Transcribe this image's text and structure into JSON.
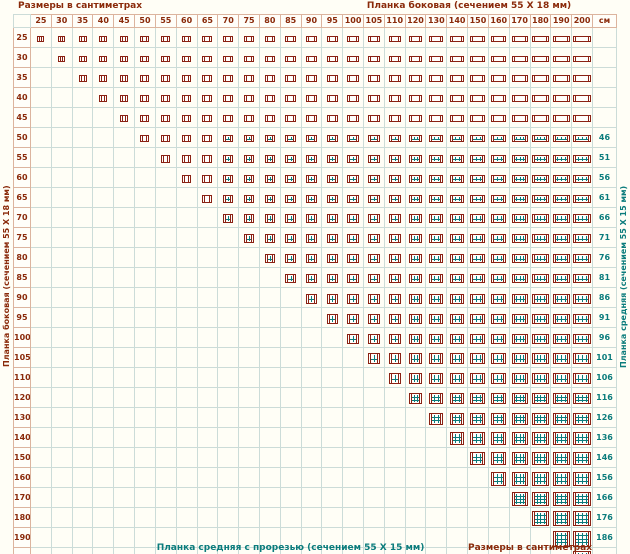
{
  "titles": {
    "top_left": "Размеры в сантиметрах",
    "top_right": "Планка боковая (сечением 55 Х 18 мм)",
    "left_vertical": "Планка боковая (сечением 55 Х 18 мм)",
    "right_vertical": "Планка средняя (сечением 55 Х 15 мм)",
    "bottom": "Планка средняя с прорезью (сечением 55 Х 15 мм)",
    "bottom_right": "Размеры в сантиметрах",
    "unit_header": "см"
  },
  "colors": {
    "side_plank_text": "#8a2a0a",
    "middle_plank_text": "#0b7c7c",
    "grid_line": "#ccdcd8",
    "header_line": "#dcb49e",
    "background": "#fffef6",
    "icon_frame": "#8a2113",
    "icon_brace": "#0e8080"
  },
  "chart_data": {
    "type": "table",
    "title": "Таблица размеров подрамников",
    "description": "Треугольная матрица размеров рам: ячейка показана, если размер столбца (ширина) не меньше размера строки (высота). Пиктограмма в ячейке изображает раму из боковых планок с поперечными средними планками; число средних планок растёт с размером.",
    "sizes_cm": [
      25,
      30,
      35,
      40,
      45,
      50,
      55,
      60,
      65,
      70,
      75,
      80,
      85,
      90,
      95,
      100,
      105,
      110,
      120,
      130,
      140,
      150,
      160,
      170,
      180,
      190,
      200
    ],
    "column_headers": [
      25,
      30,
      35,
      40,
      45,
      50,
      55,
      60,
      65,
      70,
      75,
      80,
      85,
      90,
      95,
      100,
      105,
      110,
      120,
      130,
      140,
      150,
      160,
      170,
      180,
      190,
      200
    ],
    "row_headers": [
      25,
      30,
      35,
      40,
      45,
      50,
      55,
      60,
      65,
      70,
      75,
      80,
      85,
      90,
      95,
      100,
      105,
      110,
      120,
      130,
      140,
      150,
      160,
      170,
      180,
      190,
      200
    ],
    "bottom_plank_lengths": [
      null,
      null,
      null,
      null,
      null,
      null,
      null,
      null,
      null,
      66,
      71,
      76,
      81,
      86,
      91,
      96,
      101,
      106,
      116,
      126,
      136,
      146,
      156,
      166,
      176,
      186,
      196
    ],
    "right_plank_lengths": [
      null,
      null,
      null,
      null,
      null,
      46,
      51,
      56,
      61,
      66,
      71,
      76,
      81,
      86,
      91,
      96,
      101,
      106,
      116,
      126,
      136,
      146,
      156,
      166,
      176,
      186,
      196
    ],
    "cell_rule": "cell shown where column size >= row size",
    "brace_rules": {
      "min_width": 70,
      "min_height": 50,
      "vertical_count_thresholds": [
        70,
        120,
        170
      ],
      "horizontal_count_thresholds": [
        50,
        120,
        170
      ]
    }
  }
}
